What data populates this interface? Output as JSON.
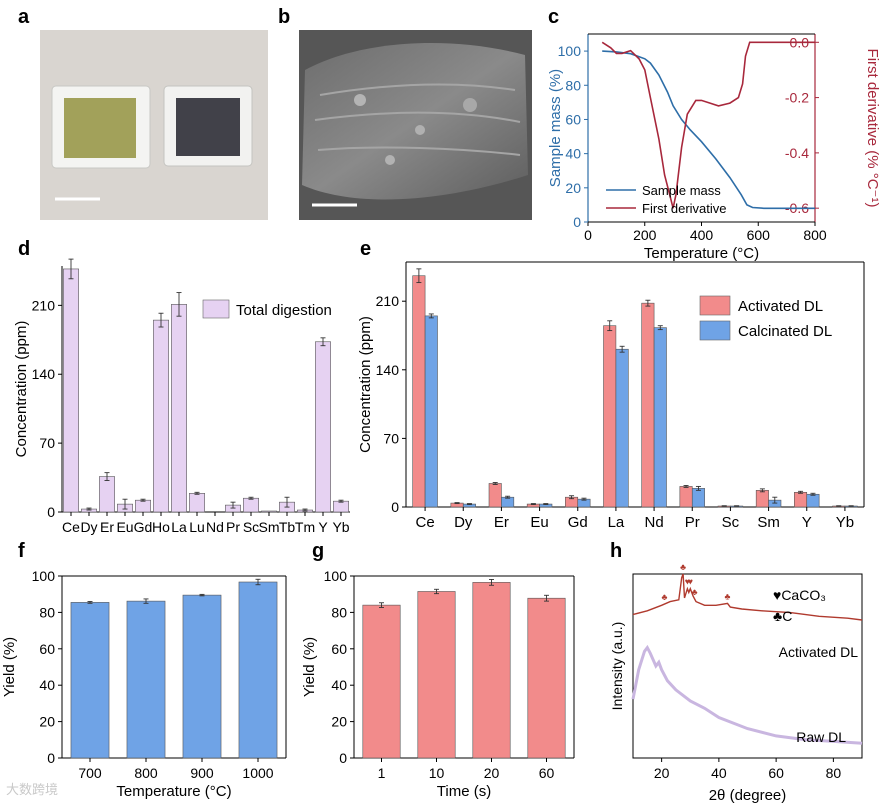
{
  "panels": {
    "a": "a",
    "b": "b",
    "c": "c",
    "d": "d",
    "e": "e",
    "f": "f",
    "g": "g",
    "h": "h"
  },
  "watermark": "大数跨境",
  "chart_data": [
    {
      "id": "c",
      "type": "line",
      "xlabel": "Temperature (°C)",
      "ylabel": "Sample mass (%)",
      "y2label": "First derivative (% °C⁻¹)",
      "xlim": [
        0,
        800
      ],
      "ylim": [
        0,
        110
      ],
      "y2lim": [
        -0.65,
        0.03
      ],
      "xticks": [
        0,
        200,
        400,
        600,
        800
      ],
      "yticks": [
        0,
        20,
        40,
        60,
        80,
        100
      ],
      "y2ticks": [
        0.0,
        -0.2,
        -0.4,
        -0.6
      ],
      "ytick_labels": [
        "0",
        "20",
        "40",
        "60",
        "80",
        "100"
      ],
      "y2tick_labels": [
        "0.0",
        "-0.2",
        "-0.4",
        "-0.6"
      ],
      "series": [
        {
          "name": "Sample mass",
          "axis": "left",
          "color": "#2e6ea8",
          "x": [
            50,
            100,
            150,
            200,
            220,
            250,
            280,
            300,
            330,
            360,
            400,
            450,
            500,
            540,
            560,
            580,
            620,
            700,
            800
          ],
          "y": [
            100,
            99.5,
            98.5,
            95.5,
            93,
            86,
            76,
            68,
            60,
            54,
            47,
            37,
            26,
            16,
            10,
            8.5,
            8,
            8,
            8
          ]
        },
        {
          "name": "First derivative",
          "axis": "right",
          "color": "#a8283c",
          "x": [
            50,
            80,
            100,
            120,
            150,
            180,
            200,
            220,
            250,
            270,
            290,
            300,
            310,
            330,
            350,
            380,
            400,
            430,
            460,
            500,
            530,
            545,
            555,
            570,
            600,
            700,
            800
          ],
          "y": [
            0.0,
            -0.02,
            -0.04,
            -0.04,
            -0.03,
            -0.06,
            -0.1,
            -0.2,
            -0.35,
            -0.48,
            -0.56,
            -0.6,
            -0.55,
            -0.38,
            -0.26,
            -0.21,
            -0.21,
            -0.22,
            -0.23,
            -0.22,
            -0.2,
            -0.15,
            -0.05,
            0.0,
            0.0,
            0.0,
            0.0
          ]
        }
      ],
      "legend": [
        "Sample mass",
        "First derivative"
      ]
    },
    {
      "id": "d",
      "type": "bar",
      "ylabel": "Concentration (ppm)",
      "ylim": [
        0,
        250
      ],
      "yticks": [
        0,
        70,
        140,
        210
      ],
      "categories": [
        "Ce",
        "Dy",
        "Er",
        "Eu",
        "Gd",
        "Ho",
        "La",
        "Lu",
        "Nd",
        "Pr",
        "Sc",
        "Sm",
        "Tb",
        "Tm",
        "Y",
        "Yb"
      ],
      "series": [
        {
          "name": "Total digestion",
          "color": "#e6d2f2",
          "values": [
            247,
            3,
            36,
            8,
            12,
            195,
            211,
            19,
            0,
            7,
            14,
            1,
            10,
            2,
            173,
            11
          ],
          "errors": [
            10,
            1,
            4,
            5,
            1,
            7,
            12,
            1,
            0,
            3,
            1,
            0,
            5,
            1,
            4,
            1
          ]
        }
      ],
      "legend": [
        "Total digestion"
      ]
    },
    {
      "id": "e",
      "type": "bar",
      "ylabel": "Concentration (ppm)",
      "ylim": [
        0,
        250
      ],
      "yticks": [
        0,
        70,
        140,
        210
      ],
      "categories": [
        "Ce",
        "Dy",
        "Er",
        "Eu",
        "Gd",
        "La",
        "Nd",
        "Pr",
        "Sc",
        "Sm",
        "Y",
        "Yb"
      ],
      "series": [
        {
          "name": "Activated DL",
          "color": "#f28b8b",
          "values": [
            236,
            4,
            24,
            3,
            10,
            185,
            208,
            21,
            1,
            17,
            15,
            1
          ],
          "errors": [
            7,
            0.5,
            1,
            0.5,
            1.5,
            5,
            3,
            1,
            0.3,
            1.5,
            1,
            0.3
          ]
        },
        {
          "name": "Calcinated DL",
          "color": "#6fa3e6",
          "values": [
            195,
            3,
            10,
            3,
            8,
            161,
            183,
            19,
            1,
            7,
            13,
            1
          ],
          "errors": [
            2,
            0.5,
            1,
            0.5,
            1,
            3,
            2,
            2,
            0.3,
            3,
            1,
            0.3
          ]
        }
      ],
      "legend": [
        "Activated DL",
        "Calcinated DL"
      ]
    },
    {
      "id": "f",
      "type": "bar",
      "xlabel": "Temperature (°C)",
      "ylabel": "Yield (%)",
      "ylim": [
        0,
        100
      ],
      "yticks": [
        0,
        20,
        40,
        60,
        80,
        100
      ],
      "categories": [
        "700",
        "800",
        "900",
        "1000"
      ],
      "series": [
        {
          "name": "Yield",
          "color": "#6fa3e6",
          "values": [
            85.5,
            86.2,
            89.5,
            96.7
          ],
          "errors": [
            0.5,
            1.2,
            0.4,
            1.5
          ]
        }
      ]
    },
    {
      "id": "g",
      "type": "bar",
      "xlabel": "Time (s)",
      "ylabel": "Yield (%)",
      "ylim": [
        0,
        100
      ],
      "yticks": [
        0,
        20,
        40,
        60,
        80,
        100
      ],
      "categories": [
        "1",
        "10",
        "20",
        "60"
      ],
      "series": [
        {
          "name": "Yield",
          "color": "#f28b8b",
          "values": [
            84,
            91.5,
            96.5,
            87.8
          ],
          "errors": [
            1.3,
            1.2,
            1.6,
            1.6
          ]
        }
      ]
    },
    {
      "id": "h",
      "type": "line",
      "xlabel": "2θ (degree)",
      "ylabel": "Intensity (a.u.)",
      "xlim": [
        10,
        90
      ],
      "xticks": [
        20,
        40,
        60,
        80
      ],
      "legend": [
        "♥CaCO₃",
        "♣C"
      ],
      "series": [
        {
          "name": "Activated DL",
          "color": "#b03a2e",
          "x": [
            10,
            15,
            20,
            23,
            26,
            27,
            27.5,
            28,
            29,
            29.5,
            30,
            31,
            32,
            35,
            39,
            43,
            44,
            48,
            55,
            65,
            75,
            85,
            90
          ],
          "y": [
            0.78,
            0.8,
            0.83,
            0.85,
            0.86,
            0.98,
            1.0,
            0.87,
            0.92,
            0.9,
            0.92,
            0.88,
            0.85,
            0.83,
            0.83,
            0.84,
            0.82,
            0.81,
            0.8,
            0.79,
            0.77,
            0.76,
            0.75
          ]
        },
        {
          "name": "Raw DL",
          "color": "#c9b6e0",
          "x": [
            10,
            12,
            14,
            15,
            16,
            18,
            19,
            20,
            22,
            25,
            30,
            35,
            40,
            50,
            60,
            70,
            80,
            90
          ],
          "y": [
            0.32,
            0.48,
            0.58,
            0.6,
            0.57,
            0.5,
            0.52,
            0.48,
            0.42,
            0.37,
            0.31,
            0.27,
            0.22,
            0.16,
            0.12,
            0.1,
            0.09,
            0.08
          ]
        }
      ],
      "curve_labels": [
        "Activated DL",
        "Raw DL"
      ],
      "markers": [
        {
          "symbol": "♣",
          "x": 21,
          "series": "Activated DL"
        },
        {
          "symbol": "♣",
          "x": 27.5,
          "series": "Activated DL"
        },
        {
          "symbol": "♥",
          "x": 29,
          "series": "Activated DL"
        },
        {
          "symbol": "♥",
          "x": 30,
          "series": "Activated DL"
        },
        {
          "symbol": "♣",
          "x": 31.5,
          "series": "Activated DL"
        },
        {
          "symbol": "♣",
          "x": 43,
          "series": "Activated DL"
        }
      ]
    }
  ]
}
